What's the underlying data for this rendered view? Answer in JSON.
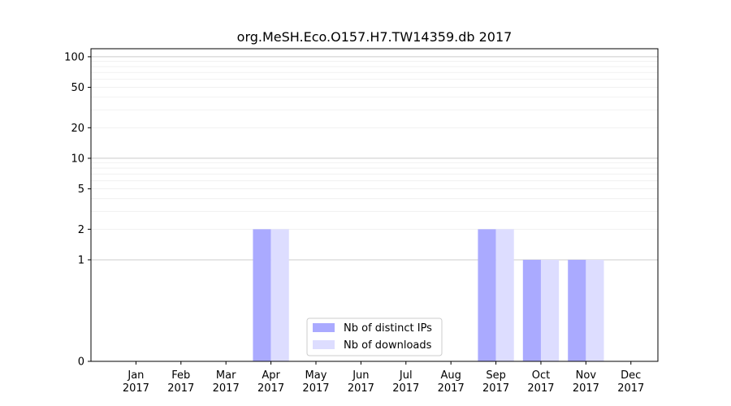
{
  "chart_data": {
    "type": "bar",
    "title": "org.MeSH.Eco.O157.H7.TW14359.db 2017",
    "xlabel": "",
    "ylabel": "",
    "yscale": "symlog",
    "ylim": [
      0,
      120
    ],
    "yticks": [
      0,
      1,
      2,
      5,
      10,
      20,
      50,
      100
    ],
    "grid": true,
    "legend_position": "bottom-center",
    "categories": [
      "Jan\n2017",
      "Feb\n2017",
      "Mar\n2017",
      "Apr\n2017",
      "May\n2017",
      "Jun\n2017",
      "Jul\n2017",
      "Aug\n2017",
      "Sep\n2017",
      "Oct\n2017",
      "Nov\n2017",
      "Dec\n2017"
    ],
    "series": [
      {
        "name": "Nb of distinct IPs",
        "color": "#aaaaff",
        "values": [
          0,
          0,
          0,
          2,
          0,
          0,
          0,
          0,
          2,
          1,
          1,
          0
        ]
      },
      {
        "name": "Nb of downloads",
        "color": "#ddddff",
        "values": [
          0,
          0,
          0,
          2,
          0,
          0,
          0,
          0,
          2,
          1,
          1,
          0
        ]
      }
    ]
  }
}
